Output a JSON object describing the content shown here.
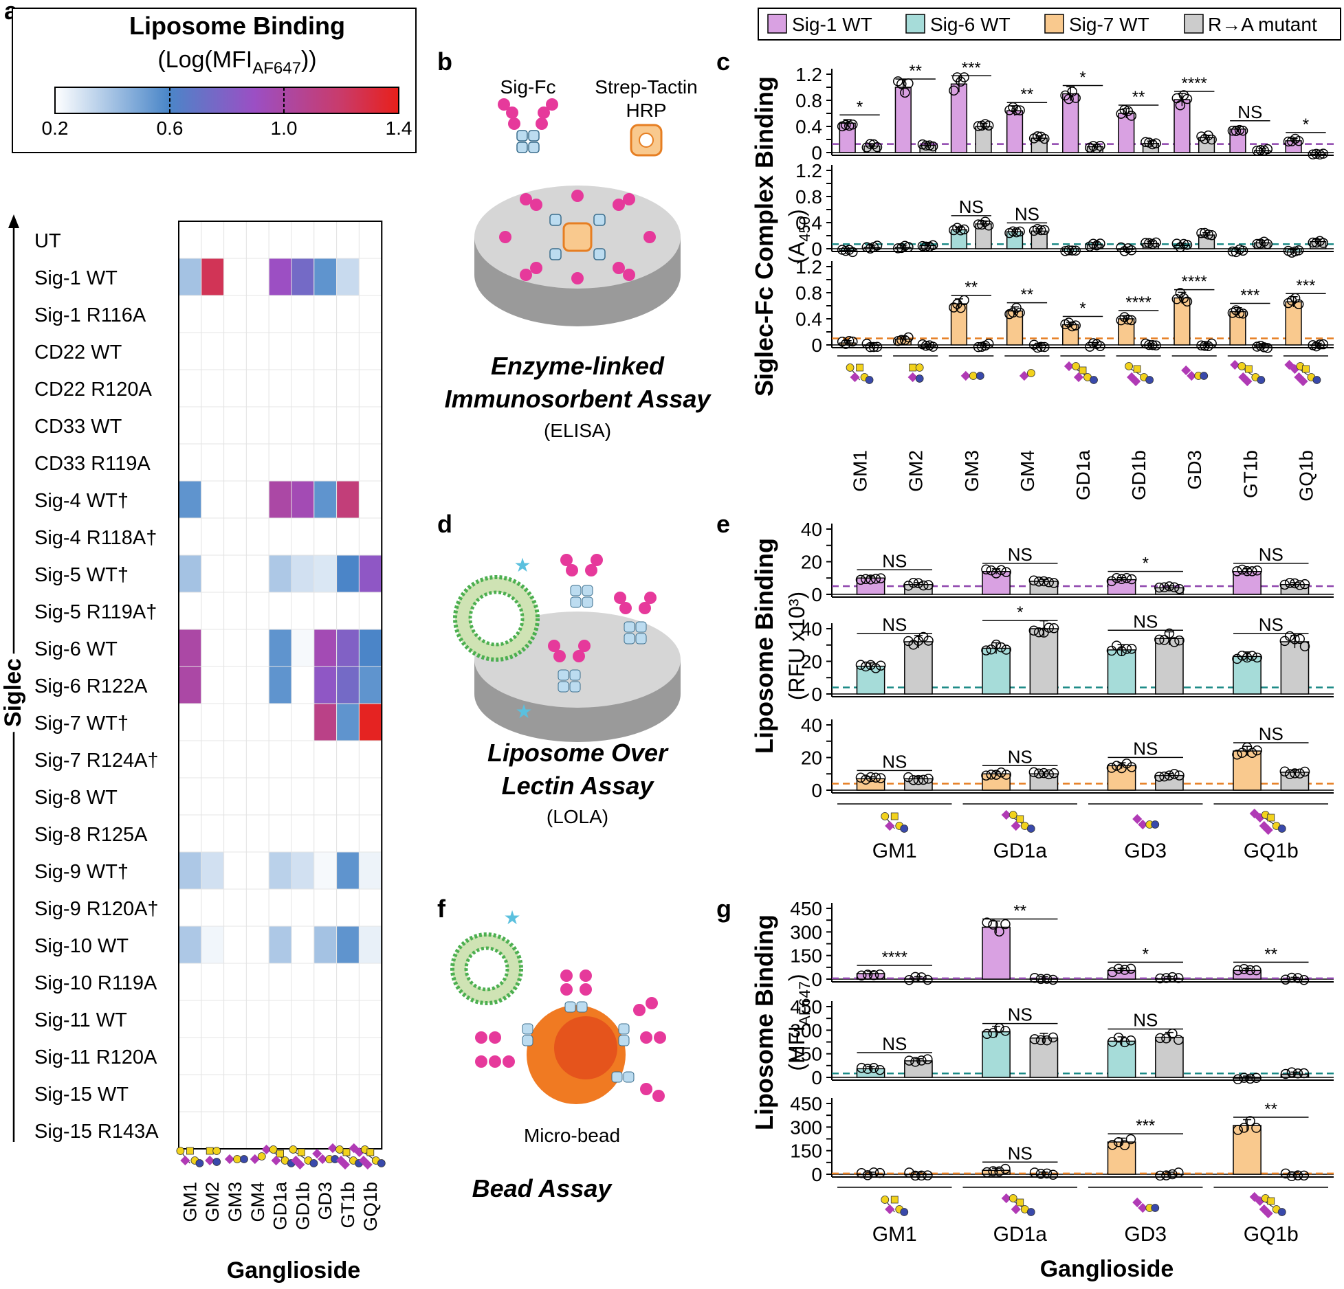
{
  "colors": {
    "sig1": "#d9a1e2",
    "sig6": "#a6dcd9",
    "sig7": "#f9c98e",
    "mutant": "#cccccc",
    "sig1_line": "#8e44ad",
    "sig6_line": "#1a8a86",
    "sig7_line": "#e67e22",
    "assay_gray": "#d4d4d4",
    "sialic": "#b03ab5",
    "galactose": "#f2d21c",
    "glcnac": "#3949ab",
    "fc_blue": "#bcdcf0",
    "pink": "#e6399b",
    "bead": "#f07a22"
  },
  "panel_labels": {
    "a": "a",
    "b": "b",
    "c": "c",
    "d": "d",
    "e": "e",
    "f": "f",
    "g": "g"
  },
  "legend": {
    "items": [
      "Sig-1 WT",
      "Sig-6 WT",
      "Sig-7 WT",
      "R→A mutant"
    ]
  },
  "heatmap": {
    "colorbar_title": "Liposome Binding",
    "colorbar_sub_prefix": "(Log(MFI",
    "colorbar_sub_subscript": "AF647",
    "colorbar_sub_suffix": "))",
    "colorbar_ticks": [
      "0.2",
      "0.6",
      "1.0",
      "1.4"
    ],
    "colorbar_range": [
      0.2,
      1.4
    ],
    "y_axis_label": "Siglec",
    "x_axis_label": "Ganglioside",
    "rows": [
      "UT",
      "Sig-1 WT",
      "Sig-1 R116A",
      "CD22 WT",
      "CD22 R120A",
      "CD33 WT",
      "CD33 R119A",
      "Sig-4 WT†",
      "Sig-4 R118A†",
      "Sig-5 WT†",
      "Sig-5 R119A†",
      "Sig-6 WT",
      "Sig-6 R122A",
      "Sig-7 WT†",
      "Sig-7 R124A†",
      "Sig-8 WT",
      "Sig-8 R125A",
      "Sig-9 WT†",
      "Sig-9 R120A†",
      "Sig-10 WT",
      "Sig-10 R119A",
      "Sig-11 WT",
      "Sig-11 R120A",
      "Sig-15 WT",
      "Sig-15 R143A"
    ],
    "columns": [
      "GM1",
      "GM2",
      "GM3",
      "GM4",
      "GD1a",
      "GD1b",
      "GD3",
      "GT1b",
      "GQ1b"
    ]
  },
  "chart_data": [
    {
      "type": "heatmap",
      "panel": "a",
      "title": "Liposome Binding (Log(MFI AF647))",
      "xlabel": "Ganglioside",
      "ylabel": "Siglec",
      "value_range": [
        0.2,
        1.4
      ],
      "columns": [
        "GM1",
        "GM2",
        "GM3",
        "GM4",
        "GD1a",
        "GD1b",
        "GD3",
        "GT1b",
        "GQ1b"
      ],
      "rows": [
        "UT",
        "Sig-1 WT",
        "Sig-1 R116A",
        "CD22 WT",
        "CD22 R120A",
        "CD33 WT",
        "CD33 R119A",
        "Sig-4 WT†",
        "Sig-4 R118A†",
        "Sig-5 WT†",
        "Sig-5 R119A†",
        "Sig-6 WT",
        "Sig-6 R122A",
        "Sig-7 WT†",
        "Sig-7 R124A†",
        "Sig-8 WT",
        "Sig-8 R125A",
        "Sig-9 WT†",
        "Sig-9 R120A†",
        "Sig-10 WT",
        "Sig-10 R119A",
        "Sig-11 WT",
        "Sig-11 R120A",
        "Sig-15 WT",
        "Sig-15 R143A"
      ],
      "values": [
        [
          null,
          null,
          null,
          null,
          null,
          null,
          null,
          null,
          null
        ],
        [
          0.4,
          1.25,
          null,
          null,
          0.9,
          0.75,
          0.55,
          0.32,
          null
        ],
        [
          null,
          null,
          null,
          null,
          null,
          null,
          null,
          null,
          null
        ],
        [
          null,
          null,
          null,
          null,
          null,
          null,
          null,
          null,
          null
        ],
        [
          null,
          null,
          null,
          null,
          null,
          null,
          null,
          null,
          null
        ],
        [
          null,
          null,
          null,
          null,
          null,
          null,
          null,
          null,
          null
        ],
        [
          null,
          null,
          null,
          null,
          null,
          null,
          null,
          null,
          null
        ],
        [
          0.55,
          null,
          null,
          null,
          1.0,
          0.95,
          0.55,
          1.15,
          null
        ],
        [
          null,
          null,
          null,
          null,
          null,
          null,
          null,
          null,
          null
        ],
        [
          0.4,
          null,
          null,
          null,
          0.38,
          0.3,
          0.28,
          0.6,
          0.85
        ],
        [
          null,
          null,
          null,
          null,
          null,
          null,
          null,
          null,
          null
        ],
        [
          1.0,
          null,
          null,
          null,
          0.55,
          0.22,
          0.95,
          0.8,
          0.6
        ],
        [
          1.0,
          null,
          null,
          null,
          0.55,
          null,
          0.85,
          0.75,
          0.55
        ],
        [
          null,
          null,
          null,
          null,
          null,
          null,
          1.1,
          0.55,
          1.38
        ],
        [
          null,
          null,
          null,
          null,
          null,
          null,
          null,
          null,
          null
        ],
        [
          null,
          null,
          null,
          null,
          null,
          null,
          null,
          null,
          null
        ],
        [
          null,
          null,
          null,
          null,
          null,
          null,
          null,
          null,
          null
        ],
        [
          0.38,
          0.3,
          null,
          null,
          0.35,
          0.3,
          0.22,
          0.55,
          0.24
        ],
        [
          null,
          null,
          null,
          null,
          null,
          null,
          null,
          null,
          null
        ],
        [
          0.38,
          0.23,
          null,
          null,
          0.38,
          null,
          0.4,
          0.55,
          0.25
        ],
        [
          null,
          null,
          null,
          null,
          null,
          null,
          null,
          null,
          null
        ],
        [
          null,
          null,
          null,
          null,
          null,
          null,
          null,
          null,
          null
        ],
        [
          null,
          null,
          null,
          null,
          null,
          null,
          null,
          null,
          null
        ],
        [
          null,
          null,
          null,
          null,
          null,
          null,
          null,
          null,
          null
        ],
        [
          null,
          null,
          null,
          null,
          null,
          null,
          null,
          null,
          null
        ]
      ]
    },
    {
      "type": "bar",
      "panel": "c",
      "ylabel": "Siglec-Fc Complex Binding",
      "ylabel_unit": "(A",
      "ylabel_unit_subscript": "450",
      "ylabel_unit_close": ")",
      "ylim": [
        0,
        1.2
      ],
      "yticks": [
        "0",
        "0.4",
        "0.8",
        "1.2"
      ],
      "yticks_mid": [
        "0.2",
        "0.6",
        "1.0"
      ],
      "ytick_values": [
        0,
        0.2,
        0.4,
        0.6,
        0.8,
        1.0,
        1.2
      ],
      "categories": [
        "GM1",
        "GM2",
        "GM3",
        "GM4",
        "GD1a",
        "GD1b",
        "GD3",
        "GT1b",
        "GQ1b"
      ],
      "glycans": [
        "GM1",
        "GM2",
        "GM3",
        "GM4",
        "GD1a",
        "GD1b",
        "GD3",
        "GT1b",
        "GQ1b"
      ],
      "subplots": [
        {
          "color_key": "sig1",
          "baseline": 0.13,
          "series": [
            {
              "name": "Sig-1 WT",
              "values": [
                0.45,
                1.0,
                1.05,
                0.64,
                0.9,
                0.6,
                0.81,
                0.36,
                0.18
              ]
            },
            {
              "name": "R→A mutant",
              "values": [
                0.1,
                0.11,
                0.4,
                0.22,
                0.09,
                0.14,
                0.23,
                0.03,
                -0.03
              ]
            }
          ],
          "sig": [
            "*",
            "**",
            "***",
            "**",
            "*",
            "**",
            "****",
            "NS",
            "*"
          ]
        },
        {
          "color_key": "sig6",
          "baseline": 0.07,
          "series": [
            {
              "name": "Sig-6 WT",
              "values": [
                -0.03,
                0.02,
                0.29,
                0.26,
                -0.04,
                -0.01,
                0.05,
                -0.04,
                -0.05
              ]
            },
            {
              "name": "R→A mutant",
              "values": [
                0.02,
                0.05,
                0.38,
                0.27,
                0.06,
                0.08,
                0.21,
                0.09,
                0.11
              ]
            }
          ],
          "sig": [
            "",
            "",
            "NS",
            "NS",
            "",
            "",
            "",
            "",
            ""
          ]
        },
        {
          "color_key": "sig7",
          "baseline": 0.1,
          "series": [
            {
              "name": "Sig-7 WT",
              "values": [
                0.03,
                0.09,
                0.63,
                0.52,
                0.31,
                0.4,
                0.72,
                0.51,
                0.66
              ]
            },
            {
              "name": "R→A mutant",
              "values": [
                -0.01,
                -0.02,
                -0.01,
                -0.01,
                0.0,
                -0.01,
                -0.01,
                -0.02,
                -0.01
              ]
            }
          ],
          "sig": [
            "",
            "",
            "**",
            "**",
            "*",
            "****",
            "****",
            "***",
            "***"
          ]
        }
      ]
    },
    {
      "type": "bar",
      "panel": "e",
      "ylabel": "Liposome Binding",
      "ylabel_unit": "(RFU x10³)",
      "ylim": [
        0,
        40
      ],
      "yticks": [
        "0",
        "20",
        "40"
      ],
      "ytick_values": [
        0,
        10,
        20,
        30,
        40
      ],
      "categories": [
        "GM1",
        "GD1a",
        "GD3",
        "GQ1b"
      ],
      "glycans": [
        "GM1",
        "GD1a",
        "GD3",
        "GQ1b"
      ],
      "subplots": [
        {
          "color_key": "sig1",
          "baseline": 5,
          "series": [
            {
              "name": "Sig-1 WT",
              "values": [
                10,
                14,
                9,
                14
              ]
            },
            {
              "name": "R→A mutant",
              "values": [
                6,
                8,
                4,
                6
              ]
            }
          ],
          "sig": [
            "NS",
            "NS",
            "*",
            "NS"
          ]
        },
        {
          "color_key": "sig6",
          "baseline": 4,
          "series": [
            {
              "name": "Sig-6 WT",
              "values": [
                17,
                28,
                27,
                23
              ]
            },
            {
              "name": "R→A mutant",
              "values": [
                32,
                40,
                34,
                32
              ]
            }
          ],
          "sig": [
            "NS",
            "*",
            "NS",
            "NS"
          ]
        },
        {
          "color_key": "sig7",
          "baseline": 4,
          "series": [
            {
              "name": "Sig-7 WT",
              "values": [
                7,
                10,
                15,
                24
              ]
            },
            {
              "name": "R→A mutant",
              "values": [
                7,
                10,
                9,
                11
              ]
            }
          ],
          "sig": [
            "NS",
            "NS",
            "NS",
            "NS"
          ]
        }
      ]
    },
    {
      "type": "bar",
      "panel": "g",
      "ylabel": "Liposome Binding",
      "ylabel_unit": "(MFI",
      "ylabel_unit_subscript": "AF647",
      "ylabel_unit_close": ")",
      "xlabel": "Ganglioside",
      "ylim": [
        0,
        450
      ],
      "yticks": [
        "0",
        "150",
        "300",
        "450"
      ],
      "ytick_values": [
        0,
        75,
        150,
        225,
        300,
        375,
        450
      ],
      "categories": [
        "GM1",
        "GD1a",
        "GD3",
        "GQ1b"
      ],
      "glycans": [
        "GM1",
        "GD1a",
        "GD3",
        "GQ1b"
      ],
      "subplots": [
        {
          "color_key": "sig1",
          "baseline": 5,
          "series": [
            {
              "name": "Sig-1 WT",
              "values": [
                35,
                330,
                55,
                55
              ]
            },
            {
              "name": "R→A mutant",
              "values": [
                2,
                2,
                3,
                -2
              ]
            }
          ],
          "sig": [
            "****",
            "**",
            "*",
            "**"
          ]
        },
        {
          "color_key": "sig6",
          "baseline": 25,
          "series": [
            {
              "name": "Sig-6 WT",
              "values": [
                55,
                290,
                230,
                -5
              ]
            },
            {
              "name": "R→A mutant",
              "values": [
                105,
                250,
                255,
                20
              ]
            }
          ],
          "sig": [
            "NS",
            "NS",
            "NS",
            ""
          ]
        },
        {
          "color_key": "sig7",
          "baseline": 5,
          "series": [
            {
              "name": "Sig-7 WT",
              "values": [
                0,
                25,
                205,
                310
              ]
            },
            {
              "name": "R→A mutant",
              "values": [
                0,
                0,
                0,
                0
              ]
            }
          ],
          "sig": [
            "",
            "NS",
            "***",
            "**"
          ]
        }
      ]
    }
  ],
  "assays": {
    "elisa": {
      "title_line1": "Enzyme-linked",
      "title_line2": "Immunosorbent Assay",
      "abbr": "(ELISA)",
      "label_sigfc": "Sig-Fc",
      "label_strep1": "Strep-Tactin",
      "label_strep2": "HRP"
    },
    "lola": {
      "title_line1": "Liposome Over",
      "title_line2": "Lectin Assay",
      "abbr": "(LOLA)"
    },
    "bead": {
      "title": "Bead Assay",
      "label_bead": "Micro-bead"
    }
  }
}
